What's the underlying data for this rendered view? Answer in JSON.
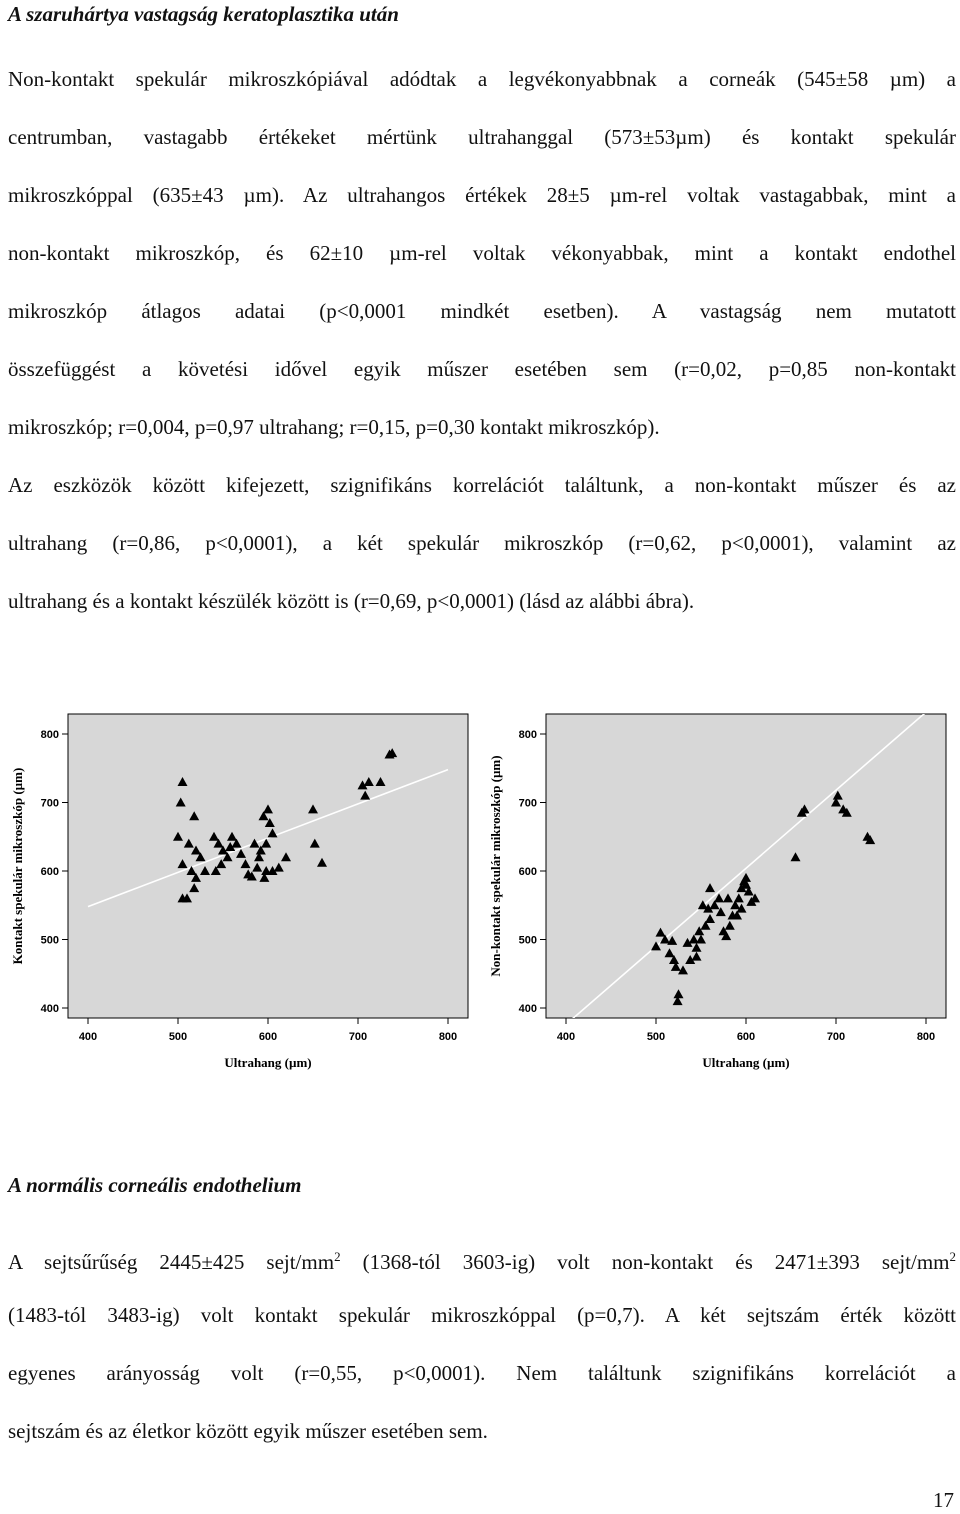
{
  "section1": {
    "heading": "A szaruhártya vastagság keratoplasztika után",
    "lines": [
      "Non-kontakt spekulár mikroszkópiával adódtak a legvékonyabbnak a corneák (545±58 µm) a",
      "centrumban, vastagabb értékeket mértünk ultrahanggal (573±53µm) és kontakt spekulár",
      "mikroszkóppal (635±43 µm). Az ultrahangos értékek 28±5 µm-rel voltak vastagabbak, mint a",
      "non-kontakt mikroszkóp, és 62±10 µm-rel voltak vékonyabbak, mint a kontakt endothel",
      "mikroszkóp átlagos adatai (p<0,0001 mindkét esetben). A vastagság nem mutatott",
      "összefüggést a követési idővel egyik műszer esetében sem (r=0,02, p=0,85 non-kontakt",
      "mikroszkóp; r=0,004, p=0,97 ultrahang; r=0,15, p=0,30 kontakt mikroszkóp).",
      "Az eszközök között kifejezett, szignifikáns korrelációt találtunk, a non-kontakt műszer és az",
      "ultrahang (r=0,86, p<0,0001), a két spekulár mikroszkóp (r=0,62, p<0,0001), valamint az",
      "ultrahang és a kontakt készülék között is (r=0,69, p<0,0001) (lásd az alábbi ábra)."
    ]
  },
  "section2": {
    "heading": "A normális corneális endothelium",
    "line1_a": "A sejtsűrűség 2445±425 sejt/mm",
    "line1_sup1": "2",
    "line1_b": " (1368-tól 3603-ig) volt non-kontakt és 2471±393 sejt/mm",
    "line1_sup2": "2",
    "lines": [
      "(1483-tól 3483-ig) volt kontakt spekulár mikroszkóppal (p=0,7). A két sejtszám érték között",
      "egyenes arányosság volt (r=0,55, p<0,0001). Nem találtunk szignifikáns korrelációt a",
      "sejtszám és az életkor között egyik műszer esetében sem."
    ]
  },
  "page_number": "17",
  "chart_data": [
    {
      "type": "scatter",
      "xlabel": "Ultrahang (µm)",
      "ylabel": "Kontakt spekulár mikroszkóp (µm)",
      "xlim": [
        400,
        800
      ],
      "ylim": [
        400,
        800
      ],
      "xticks": [
        "400",
        "500",
        "600",
        "700",
        "800"
      ],
      "yticks": [
        "400",
        "500",
        "600",
        "700",
        "800"
      ],
      "marker": "triangle",
      "fit_line": [
        [
          400,
          548
        ],
        [
          800,
          748
        ]
      ],
      "points": [
        [
          505,
          730
        ],
        [
          503,
          700
        ],
        [
          518,
          680
        ],
        [
          500,
          650
        ],
        [
          512,
          640
        ],
        [
          520,
          630
        ],
        [
          505,
          610
        ],
        [
          515,
          600
        ],
        [
          520,
          590
        ],
        [
          518,
          575
        ],
        [
          510,
          560
        ],
        [
          505,
          560
        ],
        [
          525,
          620
        ],
        [
          530,
          600
        ],
        [
          540,
          650
        ],
        [
          545,
          640
        ],
        [
          550,
          630
        ],
        [
          555,
          620
        ],
        [
          548,
          610
        ],
        [
          542,
          600
        ],
        [
          560,
          650
        ],
        [
          565,
          640
        ],
        [
          558,
          635
        ],
        [
          570,
          625
        ],
        [
          575,
          610
        ],
        [
          578,
          595
        ],
        [
          585,
          640
        ],
        [
          590,
          620
        ],
        [
          598,
          600
        ],
        [
          595,
          680
        ],
        [
          600,
          690
        ],
        [
          602,
          670
        ],
        [
          605,
          655
        ],
        [
          598,
          640
        ],
        [
          592,
          630
        ],
        [
          588,
          605
        ],
        [
          582,
          592
        ],
        [
          596,
          590
        ],
        [
          605,
          600
        ],
        [
          612,
          605
        ],
        [
          620,
          620
        ],
        [
          650,
          690
        ],
        [
          652,
          640
        ],
        [
          660,
          612
        ],
        [
          705,
          725
        ],
        [
          712,
          730
        ],
        [
          708,
          710
        ],
        [
          735,
          770
        ],
        [
          738,
          772
        ],
        [
          725,
          730
        ]
      ]
    },
    {
      "type": "scatter",
      "xlabel": "Ultrahang (µm)",
      "ylabel": "Non-kontakt spekulár mikroszkóp (µm)",
      "xlim": [
        400,
        800
      ],
      "ylim": [
        400,
        800
      ],
      "xticks": [
        "400",
        "500",
        "600",
        "700",
        "800"
      ],
      "yticks": [
        "400",
        "500",
        "600",
        "700",
        "800"
      ],
      "marker": "triangle",
      "fit_line": [
        [
          400,
          376
        ],
        [
          800,
          832
        ]
      ],
      "points": [
        [
          505,
          510
        ],
        [
          510,
          500
        ],
        [
          500,
          490
        ],
        [
          518,
          498
        ],
        [
          515,
          480
        ],
        [
          520,
          470
        ],
        [
          522,
          460
        ],
        [
          525,
          420
        ],
        [
          524,
          410
        ],
        [
          530,
          455
        ],
        [
          538,
          470
        ],
        [
          545,
          475
        ],
        [
          550,
          500
        ],
        [
          548,
          512
        ],
        [
          555,
          520
        ],
        [
          560,
          530
        ],
        [
          558,
          545
        ],
        [
          565,
          550
        ],
        [
          570,
          560
        ],
        [
          572,
          540
        ],
        [
          575,
          512
        ],
        [
          578,
          505
        ],
        [
          582,
          520
        ],
        [
          585,
          535
        ],
        [
          588,
          550
        ],
        [
          592,
          560
        ],
        [
          595,
          575
        ],
        [
          598,
          585
        ],
        [
          600,
          590
        ],
        [
          603,
          570
        ],
        [
          606,
          555
        ],
        [
          610,
          560
        ],
        [
          595,
          545
        ],
        [
          590,
          535
        ],
        [
          580,
          560
        ],
        [
          560,
          575
        ],
        [
          552,
          550
        ],
        [
          542,
          500
        ],
        [
          535,
          495
        ],
        [
          545,
          488
        ],
        [
          655,
          620
        ],
        [
          662,
          685
        ],
        [
          665,
          690
        ],
        [
          700,
          700
        ],
        [
          702,
          710
        ],
        [
          708,
          690
        ],
        [
          712,
          685
        ],
        [
          735,
          650
        ],
        [
          738,
          645
        ],
        [
          600,
          580
        ]
      ]
    }
  ]
}
